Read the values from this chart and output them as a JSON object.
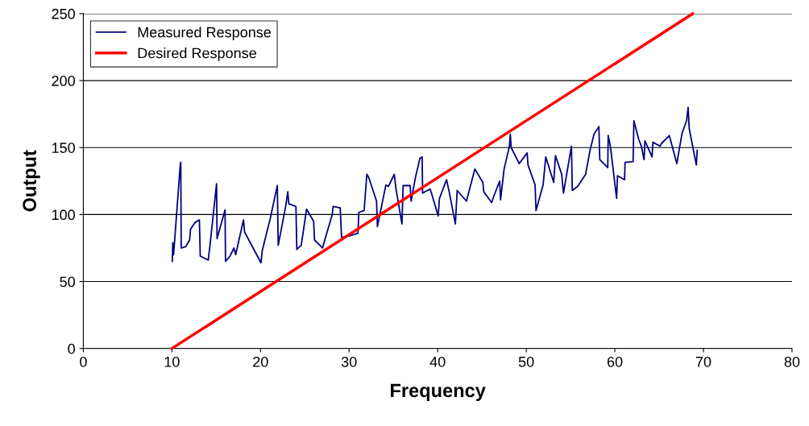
{
  "chart_data": {
    "type": "line",
    "xlabel": "Frequency",
    "ylabel": "Output",
    "xlim": [
      0,
      80
    ],
    "xticks": [
      0,
      10,
      20,
      30,
      40,
      50,
      60,
      70,
      80
    ],
    "ylim": [
      0,
      250
    ],
    "yticks": [
      0,
      50,
      100,
      150,
      200,
      250
    ],
    "grid": "y",
    "legend": "top left",
    "marker": "none",
    "line_style": "solid",
    "series": [
      {
        "name": "Measured Response",
        "color": "#000080",
        "x": [
          10.04,
          10.1,
          10.19,
          10.95,
          11.0,
          11.05,
          11.56,
          12.0,
          12.1,
          12.6,
          13.1,
          13.2,
          14.1,
          14.3,
          15.04,
          15.1,
          16.0,
          16.05,
          16.56,
          17.0,
          17.2,
          18.08,
          18.2,
          20.05,
          20.2,
          21.1,
          21.9,
          22.0,
          22.84,
          23.08,
          23.2,
          24.0,
          24.1,
          24.6,
          25.2,
          26.0,
          26.1,
          27.0,
          27.3,
          28.1,
          28.2,
          29.0,
          29.15,
          30.06,
          31.0,
          31.1,
          31.7,
          32.0,
          32.2,
          33.1,
          33.2,
          34.15,
          34.45,
          35.1,
          35.3,
          35.97,
          36.1,
          36.9,
          37.0,
          37.5,
          38.0,
          38.25,
          38.3,
          39.15,
          39.3,
          40.06,
          40.2,
          41.0,
          41.3,
          42.0,
          42.2,
          43.25,
          44.2,
          45.1,
          45.2,
          46.1,
          46.3,
          47.0,
          47.1,
          47.5,
          48.1,
          48.2,
          48.3,
          49.2,
          50.1,
          50.2,
          51.0,
          51.1,
          51.9,
          52.2,
          53.1,
          53.3,
          54.0,
          54.2,
          55.1,
          55.2,
          55.8,
          56.7,
          57.2,
          57.65,
          58.2,
          58.3,
          59.2,
          59.25,
          59.5,
          60.2,
          60.3,
          61.1,
          61.15,
          62.06,
          62.15,
          62.7,
          63.0,
          63.3,
          63.4,
          64.2,
          64.3,
          65.1,
          65.25,
          66.15,
          67.0,
          67.2,
          67.6,
          68.1,
          68.27,
          68.4,
          69.2,
          69.3
        ],
        "values": [
          65,
          79,
          70,
          138,
          139,
          75,
          76,
          81,
          89,
          94,
          96,
          69,
          66,
          77,
          123,
          82,
          103.5,
          65,
          69,
          75,
          70,
          96,
          87,
          64,
          73,
          97,
          121.6,
          77,
          106,
          117,
          108,
          106,
          74,
          77,
          104,
          95,
          81,
          75,
          82,
          100,
          106,
          105,
          83,
          84,
          86,
          101.6,
          103,
          130,
          128,
          110,
          91,
          122,
          121,
          130,
          119,
          93,
          121.6,
          121.6,
          110,
          128,
          142,
          143,
          116,
          119,
          116,
          99,
          112,
          126,
          117,
          93,
          118,
          110,
          134,
          124,
          117,
          109,
          113,
          125,
          111,
          134,
          151,
          160,
          150,
          138,
          146,
          137,
          122,
          103,
          122,
          143,
          124,
          144,
          130,
          116,
          151,
          118,
          121,
          130,
          148,
          160,
          165.7,
          141,
          135,
          159,
          151,
          112,
          129,
          126,
          139,
          139.5,
          170,
          156,
          151,
          141,
          155,
          143,
          154,
          151,
          153,
          159,
          138,
          146,
          161,
          170,
          180,
          164,
          137,
          148
        ]
      },
      {
        "name": "Desired Response",
        "color": "#ff0000",
        "x": [
          10,
          68.8
        ],
        "values": [
          0,
          250
        ]
      }
    ]
  }
}
